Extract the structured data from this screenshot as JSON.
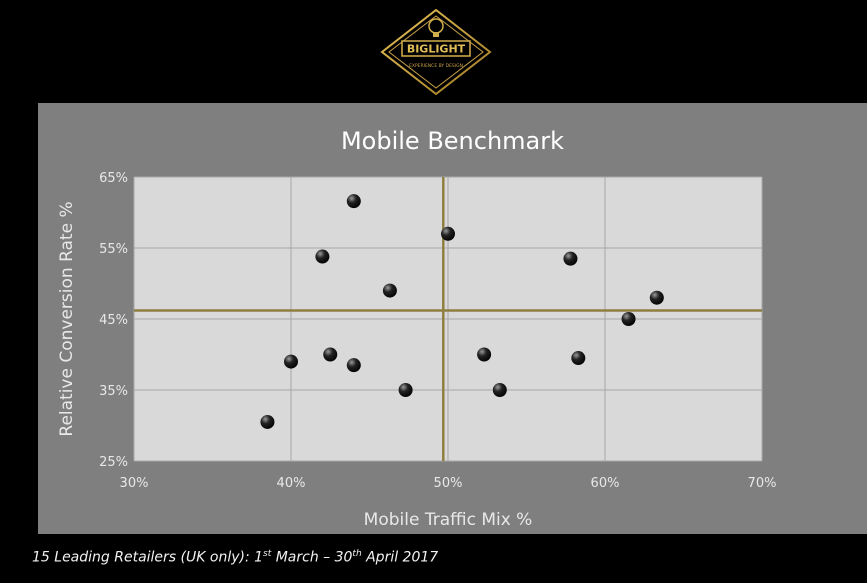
{
  "logo": {
    "brand": "BIGLIGHT",
    "tagline": "EXPERIENCE BY DESIGN"
  },
  "footer": {
    "prefix": "15 Leading Retailers (UK only): 1",
    "sup1": "st",
    "mid": " March – 30",
    "sup2": "th",
    "suffix": " April 2017"
  },
  "colors": {
    "background": "#000000",
    "panel": "#7f7f7f",
    "plot": "#d9d9d9",
    "grid": "#a8a8a8",
    "reference": "#8f7f3f",
    "point": "#222222"
  },
  "chart_data": {
    "type": "scatter",
    "title": "Mobile Benchmark",
    "xlabel": "Mobile Traffic Mix %",
    "ylabel": "Relative Conversion Rate %",
    "xlim": [
      30,
      70
    ],
    "ylim": [
      25,
      65
    ],
    "xticks": [
      "30%",
      "40%",
      "50%",
      "60%",
      "70%"
    ],
    "yticks": [
      "25%",
      "35%",
      "45%",
      "55%",
      "65%"
    ],
    "grid": true,
    "reference_lines": {
      "x": 49.7,
      "y": 46.2
    },
    "points": [
      {
        "x": 38.5,
        "y": 30.5
      },
      {
        "x": 40.0,
        "y": 39.0
      },
      {
        "x": 42.0,
        "y": 53.8
      },
      {
        "x": 42.5,
        "y": 40.0
      },
      {
        "x": 44.0,
        "y": 61.6
      },
      {
        "x": 44.0,
        "y": 38.5
      },
      {
        "x": 46.3,
        "y": 49.0
      },
      {
        "x": 47.3,
        "y": 35.0
      },
      {
        "x": 50.0,
        "y": 57.0
      },
      {
        "x": 52.3,
        "y": 40.0
      },
      {
        "x": 53.3,
        "y": 35.0
      },
      {
        "x": 57.8,
        "y": 53.5
      },
      {
        "x": 58.3,
        "y": 39.5
      },
      {
        "x": 61.5,
        "y": 45.0
      },
      {
        "x": 63.3,
        "y": 48.0
      }
    ]
  }
}
